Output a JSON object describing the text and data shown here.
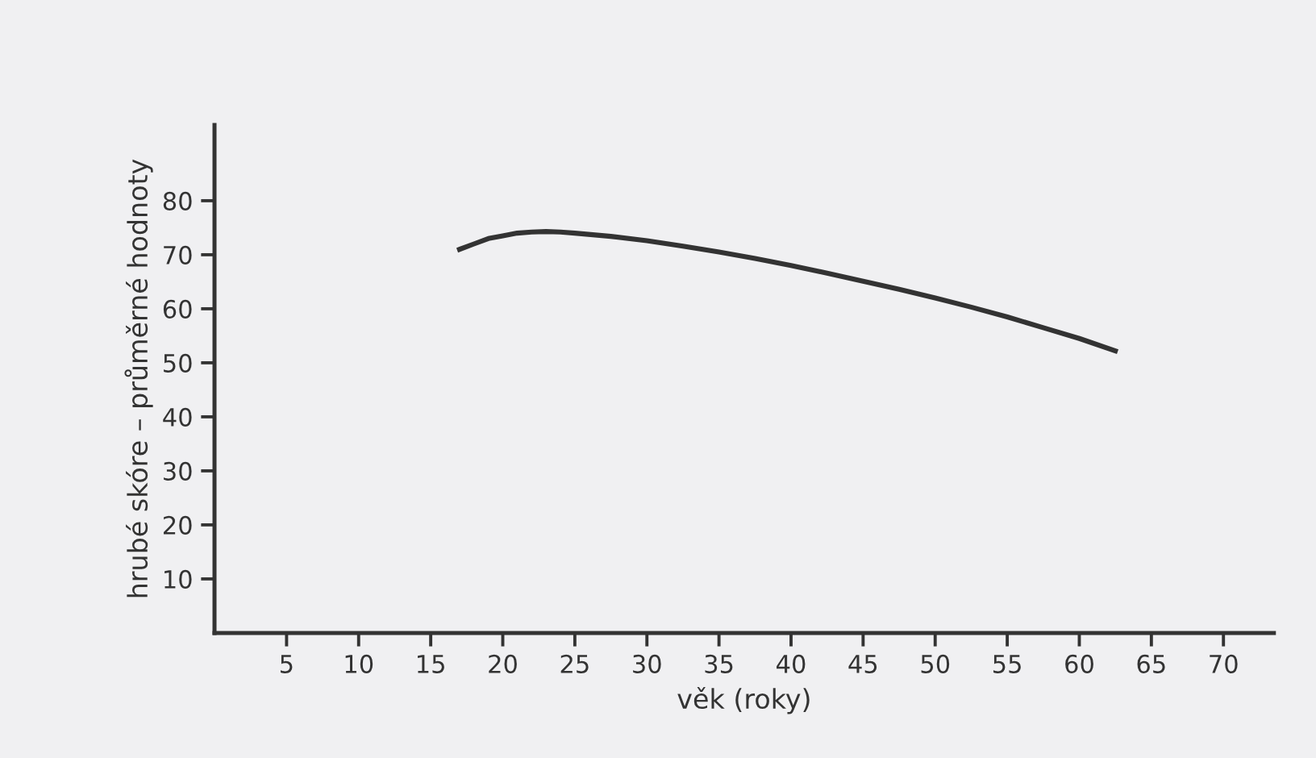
{
  "chart_data": {
    "type": "line",
    "xlabel": "věk (roky)",
    "ylabel": "hrubé skóre – průměrné hodnoty",
    "x": [
      17,
      18,
      19,
      20,
      21,
      22,
      23,
      24,
      25,
      27.5,
      30,
      32.5,
      35,
      37.5,
      40,
      42.5,
      45,
      47.5,
      50,
      52.5,
      55,
      57.5,
      60,
      62.5
    ],
    "series": [
      {
        "color": "#333333",
        "values": [
          71,
          72,
          73,
          73.5,
          74,
          74.2,
          74.3,
          74.2,
          74,
          73.4,
          72.6,
          71.6,
          70.5,
          69.3,
          68,
          66.6,
          65.1,
          63.6,
          62,
          60.3,
          58.5,
          56.5,
          54.5,
          52.2
        ]
      }
    ],
    "xlim": [
      0,
      73.5
    ],
    "ylim": [
      0,
      94
    ],
    "xticks": [
      5,
      10,
      15,
      20,
      25,
      30,
      35,
      40,
      45,
      50,
      55,
      60,
      65,
      70
    ],
    "yticks": [
      10,
      20,
      30,
      40,
      50,
      60,
      70,
      80
    ],
    "grid": false,
    "legend": false,
    "marker": "none",
    "line_style": "solid"
  }
}
